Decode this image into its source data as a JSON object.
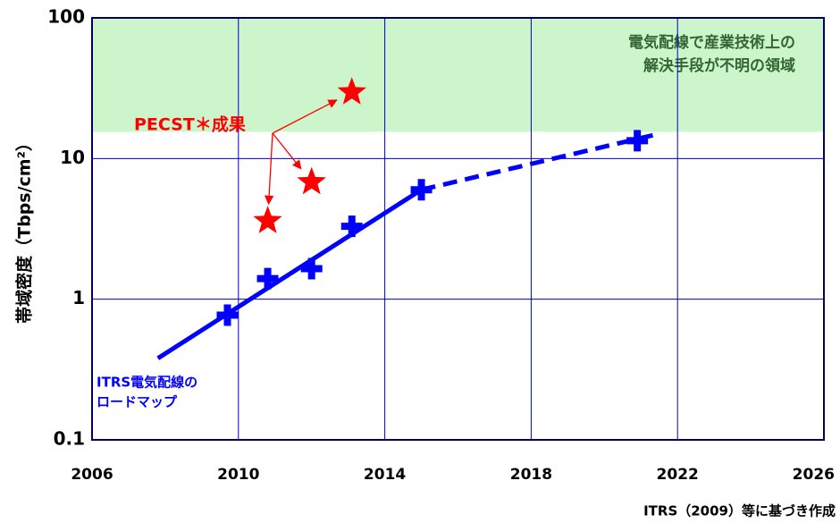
{
  "chart_data": {
    "type": "scatter",
    "ylabel": "帯域密度（Tbps/cm²）",
    "source": "ITRS（2009）等に基づき作成",
    "log_y": true,
    "grid": true,
    "grid_color": "#0000cc",
    "xlim": [
      2006,
      2026
    ],
    "xticks": [
      2006,
      2010,
      2014,
      2018,
      2022,
      2026
    ],
    "ylim": [
      0.1,
      100
    ],
    "yticks": [
      0.1,
      1,
      10,
      100
    ],
    "shaded_region": {
      "ylim": [
        15.5,
        100
      ],
      "color": "#ccf5cc",
      "text": [
        "電気配線で産業技術上の",
        "解決手段が不明の領域"
      ],
      "text_color": "#336633"
    },
    "series": [
      {
        "marker": "plus",
        "color": "#0000ff",
        "x": [
          2009.7,
          2010.8,
          2012.0,
          2013.1,
          2015.0,
          2020.9
        ],
        "values": [
          0.77,
          1.4,
          1.65,
          3.3,
          6.0,
          13.4
        ]
      },
      {
        "marker": "none",
        "line": "solid",
        "color": "#0000ff",
        "x": [
          2007.8,
          2015.0
        ],
        "values": [
          0.38,
          6.0
        ]
      },
      {
        "marker": "none",
        "line": "dashed",
        "color": "#0000ff",
        "x": [
          2015.0,
          2021.4
        ],
        "values": [
          6.0,
          14.8
        ]
      },
      {
        "marker": "star",
        "color": "#ff0000",
        "x": [
          2010.8,
          2012.0,
          2013.1
        ],
        "values": [
          3.6,
          6.8,
          29.6
        ]
      }
    ],
    "annotations": [
      {
        "text": [
          "PECST＊成果"
        ],
        "color": "#ff0000"
      },
      {
        "text": [
          "ITRS電気配線の",
          "ロードマップ"
        ],
        "color": "#0000ff"
      }
    ]
  }
}
